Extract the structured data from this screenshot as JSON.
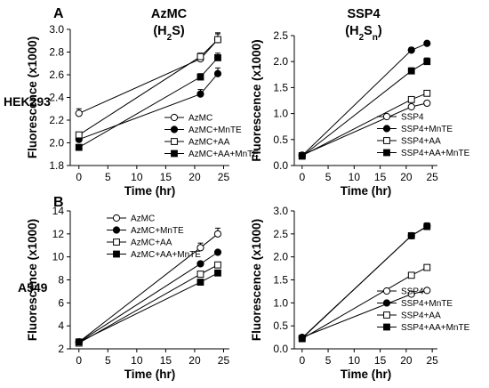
{
  "figure": {
    "panel_letters": [
      "A",
      "B"
    ],
    "row_labels": [
      "HEK293",
      "A549"
    ],
    "column_titles": [
      {
        "line1": "AzMC",
        "line2_main": "(H",
        "line2_sub": "2",
        "line2_tail": "S)",
        "line2_sub2": "",
        "line2_tail2": ""
      },
      {
        "line1": "SSP4",
        "line2_main": "(H",
        "line2_sub": "2",
        "line2_tail": "S",
        "line2_sub2": "n",
        "line2_tail2": ")"
      }
    ]
  },
  "chart_data": [
    {
      "id": "hek293-azmc",
      "type": "line",
      "xlabel": "Time (hr)",
      "ylabel": "Fluorescence (x1000)",
      "xlim": [
        -1.5,
        26
      ],
      "ylim": [
        1.8,
        3.0
      ],
      "xticks": [
        0,
        5,
        10,
        15,
        20,
        25
      ],
      "yticks": [
        1.8,
        2.0,
        2.2,
        2.4,
        2.6,
        2.8,
        3.0
      ],
      "yprec": 1,
      "legend_position": "bottom-right",
      "x": [
        0,
        21,
        24
      ],
      "series": [
        {
          "name": "AzMC",
          "marker": "open-circle",
          "values": [
            2.26,
            2.74,
            2.91
          ],
          "errors": [
            0.04,
            0.05,
            0.06
          ]
        },
        {
          "name": "AzMC+MnTE",
          "marker": "filled-circle",
          "values": [
            2.03,
            2.43,
            2.61
          ],
          "errors": [
            0.02,
            0.04,
            0.05
          ]
        },
        {
          "name": "AzMC+AA",
          "marker": "open-square",
          "values": [
            2.07,
            2.76,
            2.91
          ],
          "errors": [
            0.02,
            0.03,
            0.05
          ]
        },
        {
          "name": "AzMC+AA+MnTE",
          "marker": "filled-square",
          "values": [
            1.96,
            2.58,
            2.75
          ],
          "errors": [
            0.02,
            0.03,
            0.04
          ]
        }
      ]
    },
    {
      "id": "hek293-ssp4",
      "type": "line",
      "xlabel": "Time (hr)",
      "ylabel": "Fluorescence (x1000)",
      "xlim": [
        -1.5,
        26
      ],
      "ylim": [
        0.0,
        2.5
      ],
      "xticks": [
        0,
        5,
        10,
        15,
        20,
        25
      ],
      "yticks": [
        0.0,
        0.5,
        1.0,
        1.5,
        2.0,
        2.5
      ],
      "yprec": 1,
      "legend_position": "bottom-right",
      "x": [
        0,
        21,
        24
      ],
      "series": [
        {
          "name": "SSP4",
          "marker": "open-circle",
          "values": [
            0.2,
            1.13,
            1.2
          ],
          "errors": [
            0.02,
            0.02,
            0.02
          ]
        },
        {
          "name": "SSP4+MnTE",
          "marker": "filled-circle",
          "values": [
            0.19,
            2.22,
            2.35
          ],
          "errors": [
            0.02,
            0.05,
            0.04
          ]
        },
        {
          "name": "SSP4+AA",
          "marker": "open-square",
          "values": [
            0.19,
            1.27,
            1.39
          ],
          "errors": [
            0.02,
            0.02,
            0.02
          ]
        },
        {
          "name": "SSP4+AA+MnTE",
          "marker": "filled-square",
          "values": [
            0.18,
            1.82,
            2.0
          ],
          "errors": [
            0.02,
            0.06,
            0.07
          ]
        }
      ]
    },
    {
      "id": "a549-azmc",
      "type": "line",
      "xlabel": "Time (hr)",
      "ylabel": "Fluorescence (x1000)",
      "xlim": [
        -1.5,
        26
      ],
      "ylim": [
        2,
        14
      ],
      "xticks": [
        0,
        5,
        10,
        15,
        20,
        25
      ],
      "yticks": [
        2,
        4,
        6,
        8,
        10,
        12,
        14
      ],
      "yprec": 0,
      "legend_position": "top-left",
      "x": [
        0,
        21,
        24
      ],
      "series": [
        {
          "name": "AzMC",
          "marker": "open-circle",
          "values": [
            2.6,
            10.8,
            12.0
          ],
          "errors": [
            0.15,
            0.4,
            0.5
          ]
        },
        {
          "name": "AzMC+MnTE",
          "marker": "filled-circle",
          "values": [
            2.6,
            9.4,
            10.4
          ],
          "errors": [
            0.1,
            0.15,
            0.15
          ]
        },
        {
          "name": "AzMC+AA",
          "marker": "open-square",
          "values": [
            2.5,
            8.5,
            9.3
          ],
          "errors": [
            0.1,
            0.15,
            0.15
          ]
        },
        {
          "name": "AzMC+AA+MnTE",
          "marker": "filled-square",
          "values": [
            2.6,
            7.8,
            8.6
          ],
          "errors": [
            0.1,
            0.1,
            0.1
          ]
        }
      ]
    },
    {
      "id": "a549-ssp4",
      "type": "line",
      "xlabel": "Time (hr)",
      "ylabel": "Fluorescence (x1000)",
      "xlim": [
        -1.5,
        26
      ],
      "ylim": [
        0.0,
        3.0
      ],
      "xticks": [
        0,
        5,
        10,
        15,
        20,
        25
      ],
      "yticks": [
        0.0,
        0.5,
        1.0,
        1.5,
        2.0,
        2.5,
        3.0
      ],
      "yprec": 1,
      "legend_position": "bottom-right",
      "x": [
        0,
        21,
        24
      ],
      "series": [
        {
          "name": "SSP4",
          "marker": "open-circle",
          "values": [
            0.25,
            1.19,
            1.27
          ],
          "errors": [
            0.02,
            0.02,
            0.02
          ]
        },
        {
          "name": "SSP4+MnTE",
          "marker": "filled-circle",
          "values": [
            0.24,
            2.46,
            2.67
          ],
          "errors": [
            0.02,
            0.04,
            0.07
          ]
        },
        {
          "name": "SSP4+AA",
          "marker": "open-square",
          "values": [
            0.22,
            1.6,
            1.77
          ],
          "errors": [
            0.02,
            0.02,
            0.02
          ]
        },
        {
          "name": "SSP4+AA+MnTE",
          "marker": "filled-square",
          "values": [
            0.23,
            2.46,
            2.66
          ],
          "errors": [
            0.02,
            0.03,
            0.05
          ]
        }
      ]
    }
  ]
}
